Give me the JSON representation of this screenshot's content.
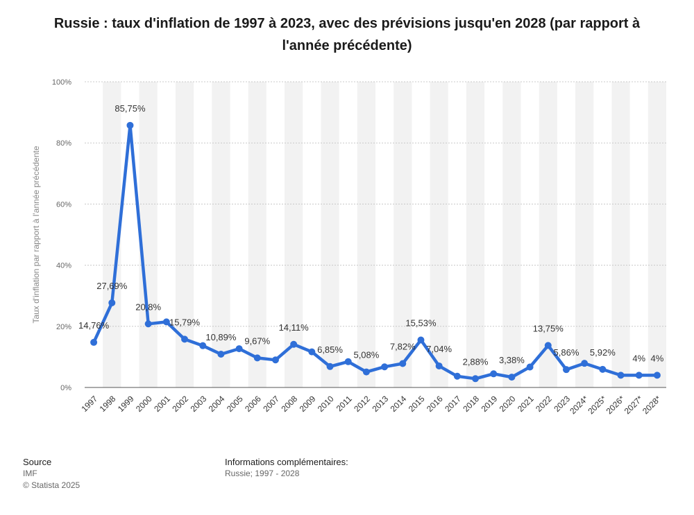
{
  "title": "Russie : taux d'inflation de 1997 à 2023, avec des prévisions jusqu'en 2028 (par rapport à l'année précédente)",
  "chart_data": {
    "type": "line",
    "ylabel": "Taux d'inflation par rapport à l'année précédente",
    "xlabel": "",
    "ylim": [
      0,
      100
    ],
    "yticks": [
      "0%",
      "20%",
      "40%",
      "60%",
      "80%",
      "100%"
    ],
    "grid": true,
    "categories": [
      "1997",
      "1998",
      "1999",
      "2000",
      "2001",
      "2002",
      "2003",
      "2004",
      "2005",
      "2006",
      "2007",
      "2008",
      "2009",
      "2010",
      "2011",
      "2012",
      "2013",
      "2014",
      "2015",
      "2016",
      "2017",
      "2018",
      "2019",
      "2020",
      "2021",
      "2022",
      "2023",
      "2024*",
      "2025*",
      "2026*",
      "2027*",
      "2028*"
    ],
    "values": [
      14.76,
      27.69,
      85.75,
      20.8,
      21.46,
      15.79,
      13.68,
      10.89,
      12.68,
      9.67,
      9.01,
      14.11,
      11.65,
      6.85,
      8.44,
      5.08,
      6.75,
      7.82,
      15.53,
      7.04,
      3.68,
      2.88,
      4.47,
      3.38,
      6.69,
      13.75,
      5.86,
      7.9,
      5.92,
      4.0,
      4.0,
      4.0
    ],
    "data_labels": [
      "14,76%",
      "27,69%",
      "85,75%",
      "20,8%",
      "",
      "15,79%",
      "",
      "10,89%",
      "",
      "9,67%",
      "",
      "14,11%",
      "",
      "6,85%",
      "",
      "5,08%",
      "",
      "7,82%",
      "15,53%",
      "7,04%",
      "",
      "2,88%",
      "",
      "3,38%",
      "",
      "13,75%",
      "5,86%",
      "",
      "5,92%",
      "",
      "4%",
      "4%"
    ],
    "line_color": "#2f6fd8",
    "band_color": "#f2f2f2",
    "grid_color": "#c8c8c8"
  },
  "footer": {
    "source_heading": "Source",
    "source_name": "IMF",
    "copyright": "© Statista 2025",
    "info_heading": "Informations complémentaires:",
    "info_text": "Russie; 1997 - 2028"
  }
}
